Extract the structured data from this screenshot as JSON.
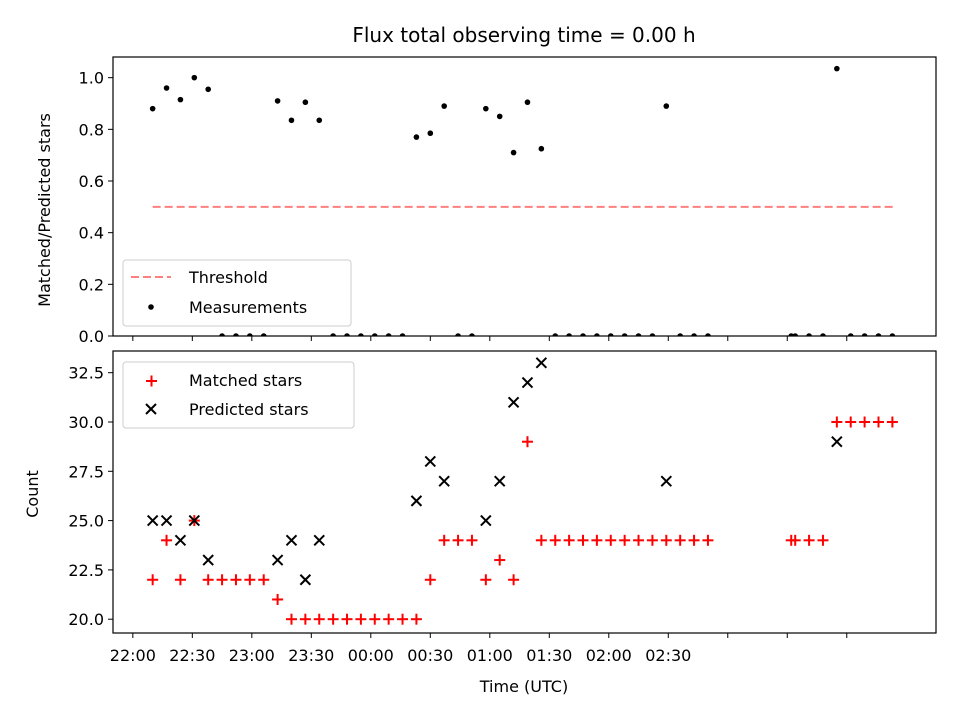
{
  "chart_data": [
    {
      "type": "scatter",
      "title": "Flux total observing time = 0.00 h",
      "xlabel": "",
      "ylabel": "Matched/Predicted stars",
      "ylim": [
        0,
        1.08
      ],
      "yticks": [
        0.0,
        0.2,
        0.4,
        0.6,
        0.8,
        1.0
      ],
      "ytick_labels": [
        "0.0",
        "0.2",
        "0.4",
        "0.6",
        "0.8",
        "1.0"
      ],
      "x_unit": "UTC time (minutes after 22:00)",
      "xlim": [
        -10,
        405
      ],
      "legend": {
        "position": "bottom-left",
        "entries": [
          "Threshold",
          "Measurements"
        ]
      },
      "threshold": {
        "name": "Threshold",
        "value": 0.5,
        "x_range": [
          10,
          385
        ],
        "color": "#ff7f7f",
        "style": "dashed"
      },
      "series": [
        {
          "name": "Measurements",
          "color": "#000000",
          "points": [
            [
              10,
              0.88
            ],
            [
              17,
              0.96
            ],
            [
              24,
              0.915
            ],
            [
              31,
              1.0
            ],
            [
              38,
              0.955
            ],
            [
              45,
              0.0
            ],
            [
              52,
              0.0
            ],
            [
              59,
              0.0
            ],
            [
              66,
              0.0
            ],
            [
              73,
              0.91
            ],
            [
              80,
              0.835
            ],
            [
              87,
              0.905
            ],
            [
              94,
              0.835
            ],
            [
              101,
              0.0
            ],
            [
              108,
              0.0
            ],
            [
              115,
              0.0
            ],
            [
              122,
              0.0
            ],
            [
              129,
              0.0
            ],
            [
              136,
              0.0
            ],
            [
              143,
              0.77
            ],
            [
              150,
              0.785
            ],
            [
              157,
              0.89
            ],
            [
              164,
              0.0
            ],
            [
              171,
              0.0
            ],
            [
              178,
              0.88
            ],
            [
              185,
              0.85
            ],
            [
              192,
              0.71
            ],
            [
              199,
              0.905
            ],
            [
              206,
              0.725
            ],
            [
              213,
              0.0
            ],
            [
              220,
              0.0
            ],
            [
              227,
              0.0
            ],
            [
              234,
              0.0
            ],
            [
              241,
              0.0
            ],
            [
              248,
              0.0
            ],
            [
              255,
              0.0
            ],
            [
              262,
              0.0
            ],
            [
              269,
              0.89
            ],
            [
              276,
              0.0
            ],
            [
              283,
              0.0
            ],
            [
              290,
              0.0
            ],
            [
              332,
              0.0
            ],
            [
              334,
              0.0
            ],
            [
              341,
              0.0
            ],
            [
              348,
              0.0
            ],
            [
              355,
              1.035
            ],
            [
              362,
              0.0
            ],
            [
              369,
              0.0
            ],
            [
              376,
              0.0
            ],
            [
              383,
              0.0
            ]
          ]
        }
      ]
    },
    {
      "type": "scatter",
      "title": "",
      "xlabel": "Time (UTC)",
      "ylabel": "Count",
      "ylim": [
        19.3,
        33.6
      ],
      "yticks": [
        20.0,
        22.5,
        25.0,
        27.5,
        30.0,
        32.5
      ],
      "ytick_labels": [
        "20.0",
        "22.5",
        "25.0",
        "27.5",
        "30.0",
        "32.5"
      ],
      "xlim": [
        -10,
        405
      ],
      "xticks": [
        0,
        30,
        60,
        90,
        120,
        150,
        180,
        210,
        240,
        270,
        300,
        330,
        360
      ],
      "xtick_labels": [
        "22:00",
        "22:30",
        "23:00",
        "23:30",
        "00:00",
        "00:30",
        "01:00",
        "01:30",
        "02:00",
        "02:30"
      ],
      "xtick_label_values": [
        0,
        30,
        60,
        90,
        120,
        150,
        180,
        210,
        240,
        270
      ],
      "legend": {
        "position": "top-left",
        "entries": [
          "Matched stars",
          "Predicted stars"
        ]
      },
      "series": [
        {
          "name": "Matched stars",
          "marker": "+",
          "color": "#ff0000",
          "points": [
            [
              10,
              22
            ],
            [
              17,
              24
            ],
            [
              24,
              22
            ],
            [
              31,
              25
            ],
            [
              38,
              22
            ],
            [
              45,
              22
            ],
            [
              52,
              22
            ],
            [
              59,
              22
            ],
            [
              66,
              22
            ],
            [
              73,
              21
            ],
            [
              80,
              20
            ],
            [
              87,
              20
            ],
            [
              94,
              20
            ],
            [
              101,
              20
            ],
            [
              108,
              20
            ],
            [
              115,
              20
            ],
            [
              122,
              20
            ],
            [
              129,
              20
            ],
            [
              136,
              20
            ],
            [
              143,
              20
            ],
            [
              150,
              22
            ],
            [
              157,
              24
            ],
            [
              164,
              24
            ],
            [
              171,
              24
            ],
            [
              178,
              22
            ],
            [
              185,
              23
            ],
            [
              192,
              22
            ],
            [
              199,
              29
            ],
            [
              206,
              24
            ],
            [
              213,
              24
            ],
            [
              220,
              24
            ],
            [
              227,
              24
            ],
            [
              234,
              24
            ],
            [
              241,
              24
            ],
            [
              248,
              24
            ],
            [
              255,
              24
            ],
            [
              262,
              24
            ],
            [
              269,
              24
            ],
            [
              276,
              24
            ],
            [
              283,
              24
            ],
            [
              290,
              24
            ],
            [
              332,
              24
            ],
            [
              334,
              24
            ],
            [
              341,
              24
            ],
            [
              348,
              24
            ],
            [
              355,
              30
            ],
            [
              362,
              30
            ],
            [
              369,
              30
            ],
            [
              376,
              30
            ],
            [
              383,
              30
            ]
          ]
        },
        {
          "name": "Predicted stars",
          "marker": "x",
          "color": "#000000",
          "points": [
            [
              10,
              25
            ],
            [
              17,
              25
            ],
            [
              24,
              24
            ],
            [
              31,
              25
            ],
            [
              38,
              23
            ],
            [
              73,
              23
            ],
            [
              80,
              24
            ],
            [
              87,
              22
            ],
            [
              94,
              24
            ],
            [
              143,
              26
            ],
            [
              150,
              28
            ],
            [
              157,
              27
            ],
            [
              178,
              25
            ],
            [
              185,
              27
            ],
            [
              192,
              31
            ],
            [
              199,
              32
            ],
            [
              206,
              33
            ],
            [
              269,
              27
            ],
            [
              355,
              29
            ]
          ]
        }
      ]
    }
  ]
}
